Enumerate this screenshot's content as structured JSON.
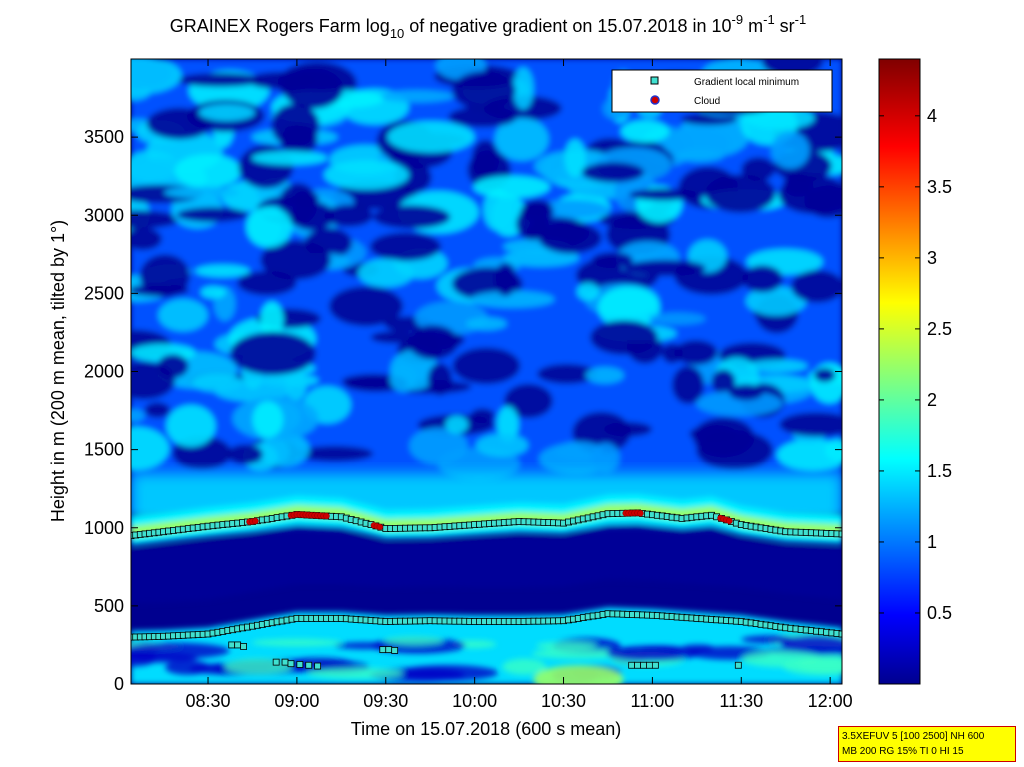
{
  "chart_data": {
    "type": "heatmap",
    "title": {
      "prefix": "GRAINEX Rogers Farm log",
      "sub": "10",
      "middle": " of negative gradient on 15.07.2018 in 10",
      "sup1": "-9",
      "unit1": " m",
      "sup2": "-1",
      "unit2": " sr",
      "sup3": "-1"
    },
    "xlabel": "Time on 15.07.2018 (600 s mean)",
    "ylabel": "Height in m (200 m mean, tilted by 1°)",
    "xlim": [
      "08:04",
      "12:04"
    ],
    "ylim": [
      0,
      4000
    ],
    "x_ticks": [
      "08:30",
      "09:00",
      "09:30",
      "10:00",
      "10:30",
      "11:00",
      "11:30",
      "12:00"
    ],
    "y_ticks": [
      0,
      500,
      1000,
      1500,
      2000,
      2500,
      3000,
      3500
    ],
    "colorbar": {
      "range": [
        0,
        4.4
      ],
      "ticks": [
        0.5,
        1,
        1.5,
        2,
        2.5,
        3,
        3.5,
        4
      ],
      "colormap": "jet"
    },
    "legend": {
      "position": "top-right",
      "entries": [
        {
          "label": "Gradient local minimum",
          "marker": "square",
          "color": "#40e0d0"
        },
        {
          "label": "Cloud",
          "marker": "circle",
          "color": "#cc0000"
        }
      ]
    },
    "series": [
      {
        "name": "Gradient local minimum",
        "layer": "upper",
        "x": [
          "08:04",
          "08:15",
          "08:30",
          "08:45",
          "09:00",
          "09:15",
          "09:30",
          "09:45",
          "10:00",
          "10:15",
          "10:30",
          "10:45",
          "10:55",
          "11:10",
          "11:20",
          "11:30",
          "11:45",
          "12:04"
        ],
        "y": [
          950,
          975,
          1010,
          1040,
          1085,
          1070,
          995,
          1000,
          1020,
          1040,
          1030,
          1090,
          1095,
          1060,
          1080,
          1020,
          975,
          960
        ]
      },
      {
        "name": "Gradient local minimum",
        "layer": "lower",
        "x": [
          "08:04",
          "08:15",
          "08:30",
          "08:45",
          "09:00",
          "09:15",
          "09:30",
          "09:45",
          "10:00",
          "10:15",
          "10:30",
          "10:45",
          "11:00",
          "11:15",
          "11:30",
          "11:45",
          "12:04"
        ],
        "y": [
          300,
          305,
          320,
          370,
          420,
          420,
          400,
          405,
          400,
          400,
          405,
          450,
          440,
          420,
          400,
          360,
          320
        ]
      },
      {
        "name": "Gradient local minimum",
        "layer": "scattered",
        "points": [
          {
            "x": "08:38",
            "y": 250
          },
          {
            "x": "08:40",
            "y": 250
          },
          {
            "x": "08:42",
            "y": 240
          },
          {
            "x": "08:53",
            "y": 140
          },
          {
            "x": "08:56",
            "y": 140
          },
          {
            "x": "08:58",
            "y": 130
          },
          {
            "x": "09:01",
            "y": 125
          },
          {
            "x": "09:04",
            "y": 120
          },
          {
            "x": "09:07",
            "y": 115
          },
          {
            "x": "09:29",
            "y": 220
          },
          {
            "x": "09:31",
            "y": 220
          },
          {
            "x": "09:33",
            "y": 215
          },
          {
            "x": "10:53",
            "y": 120
          },
          {
            "x": "10:55",
            "y": 120
          },
          {
            "x": "10:57",
            "y": 120
          },
          {
            "x": "10:59",
            "y": 120
          },
          {
            "x": "11:01",
            "y": 120
          },
          {
            "x": "11:29",
            "y": 120
          }
        ]
      },
      {
        "name": "Cloud",
        "x_ranges": [
          [
            "08:44",
            "08:46"
          ],
          [
            "08:58",
            "09:10"
          ],
          [
            "09:26",
            "09:28"
          ],
          [
            "10:51",
            "10:56"
          ],
          [
            "11:23",
            "11:26"
          ]
        ]
      }
    ],
    "heatmap_description_levels": {
      "surface_layer": 1.5,
      "dark_band_600_900m": 0.1,
      "boundary_layer_top_1000m": 2.3,
      "free_troposphere_patchy": [
        0.1,
        1.6
      ]
    }
  },
  "infobox": {
    "line1": "3.5XEFUV 5 [100 2500] NH 600",
    "line2": "MB 200 RG 15% TI 0 HI 15"
  }
}
